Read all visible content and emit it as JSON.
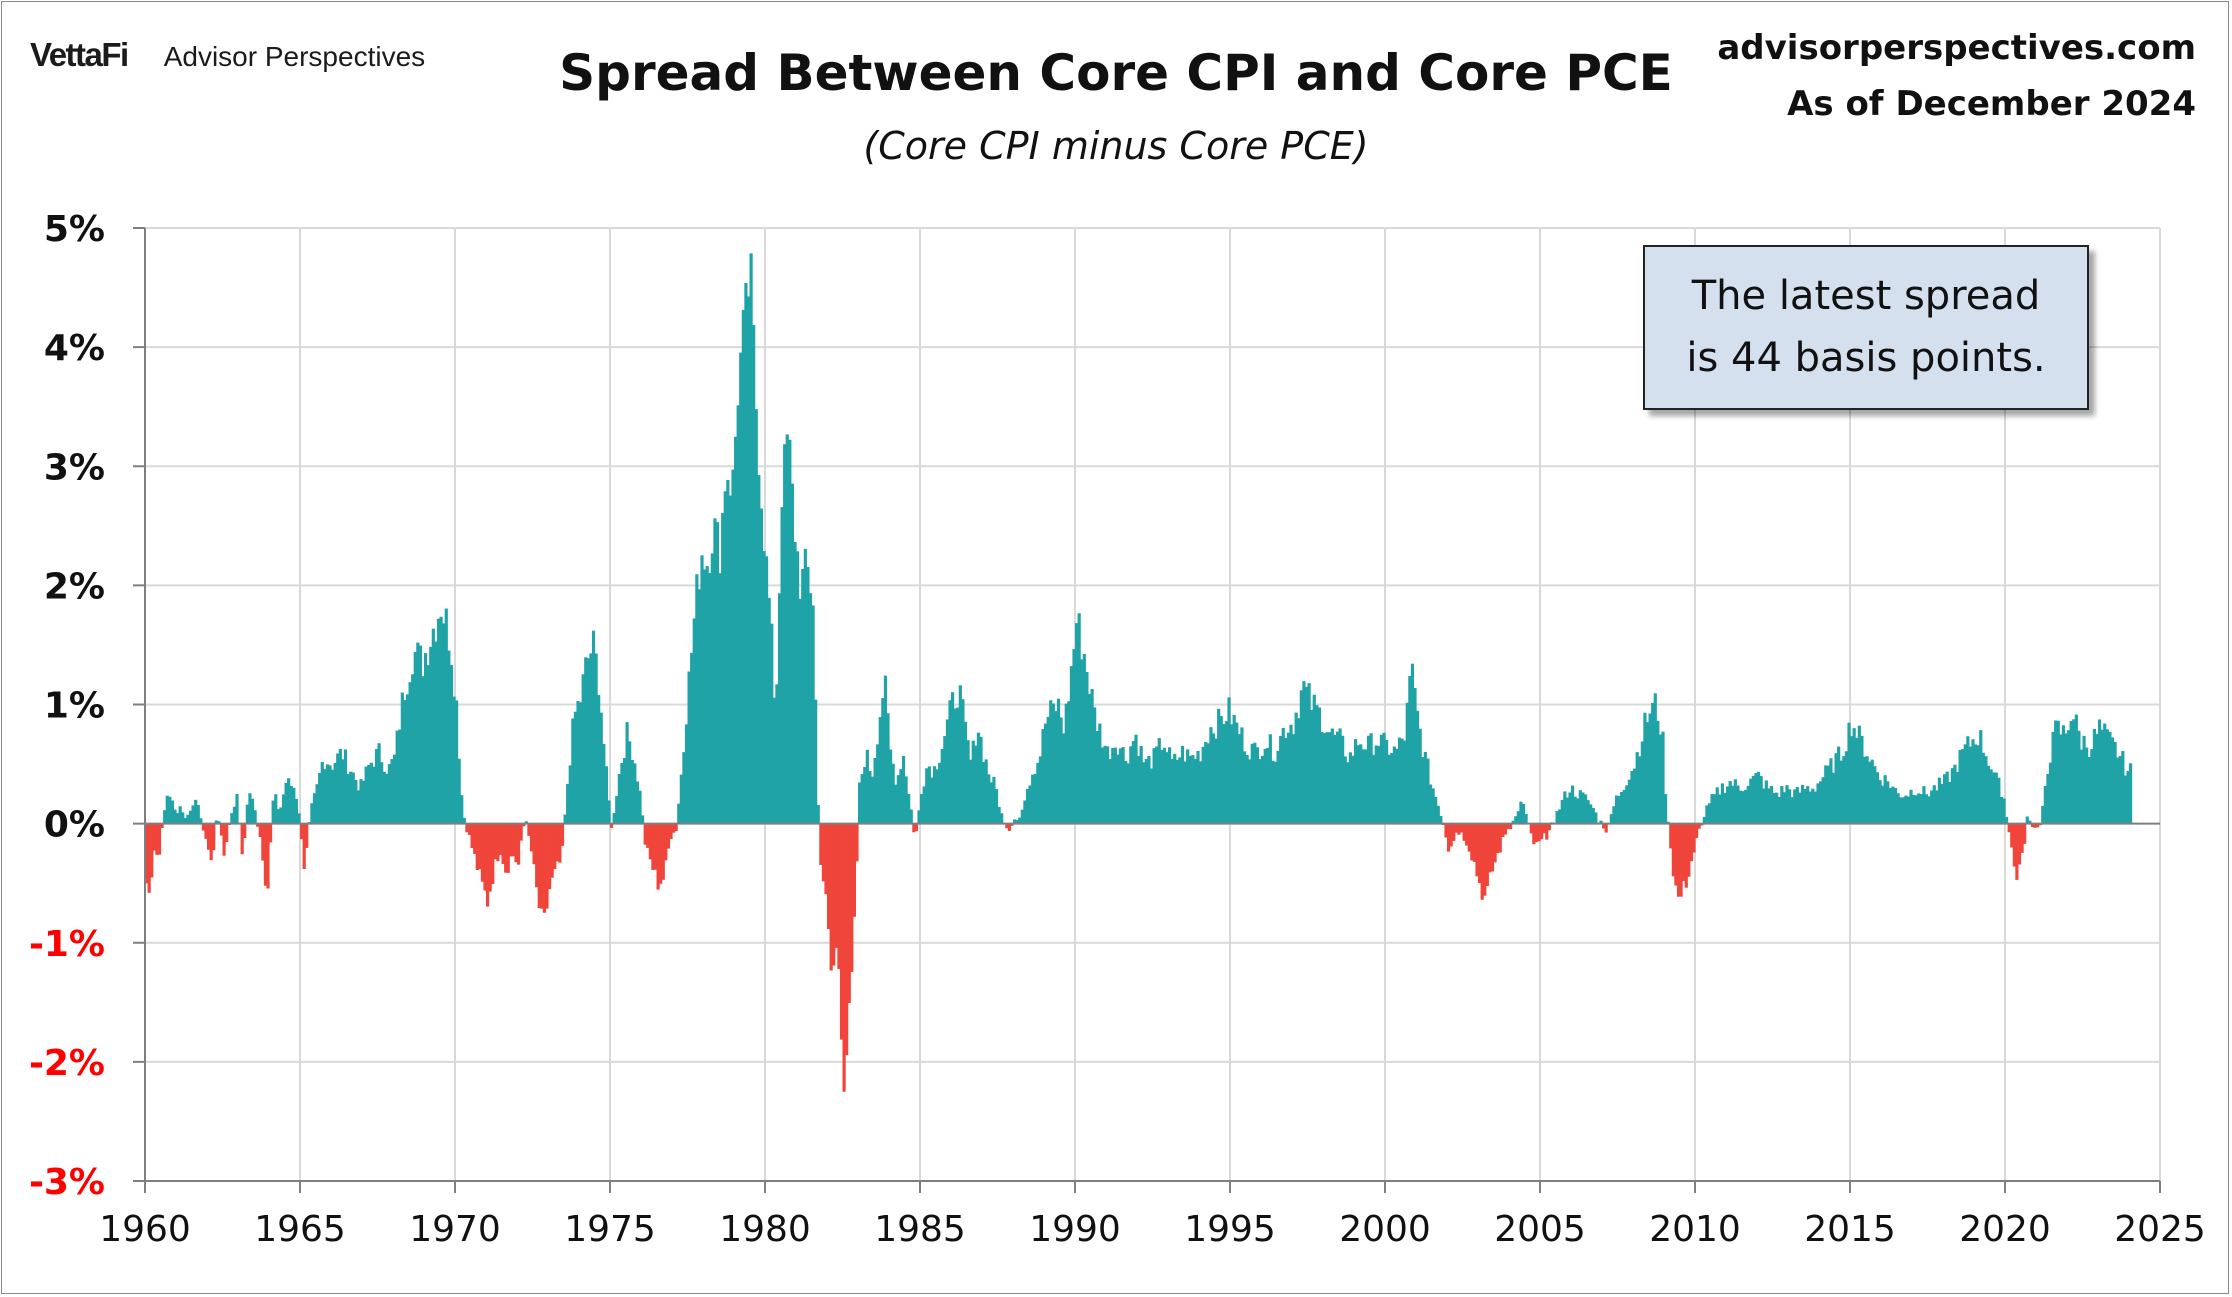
{
  "header": {
    "brand_logo": "VettaFi",
    "brand_name": "Advisor Perspectives",
    "title": "Spread Between Core CPI and Core PCE",
    "subtitle": "(Core CPI minus Core PCE)",
    "site": "advisorperspectives.com",
    "as_of": "As of December 2024"
  },
  "annotation": {
    "line1": "The latest spread",
    "line2": "is 44 basis points."
  },
  "colors": {
    "positive": "#1fa3a6",
    "negative": "#f0453b",
    "grid": "#d9d9d9",
    "axis": "#7f7f7f",
    "negative_tick_label": "#ff0000"
  },
  "chart_data": {
    "type": "bar",
    "title": "Spread Between Core CPI and Core PCE",
    "subtitle": "(Core CPI minus Core PCE)",
    "xlabel": "",
    "ylabel": "",
    "x_unit": "year (monthly observations)",
    "y_unit": "percentage points",
    "xlim": [
      1960,
      2025
    ],
    "ylim": [
      -3,
      5
    ],
    "x_ticks": [
      "1960",
      "1965",
      "1970",
      "1975",
      "1980",
      "1985",
      "1990",
      "1995",
      "2000",
      "2005",
      "2010",
      "2015",
      "2020",
      "2025"
    ],
    "y_ticks": [
      "5%",
      "4%",
      "3%",
      "2%",
      "1%",
      "0%",
      "-1%",
      "-2%",
      "-3%"
    ],
    "grid": true,
    "legend": "none",
    "latest_value": 0.44,
    "anchors": [
      [
        1960.0,
        -0.5
      ],
      [
        1960.08,
        -0.6
      ],
      [
        1960.25,
        -0.2
      ],
      [
        1960.4,
        -0.3
      ],
      [
        1960.55,
        0.05
      ],
      [
        1960.7,
        0.3
      ],
      [
        1960.9,
        0.1
      ],
      [
        1961.1,
        0.15
      ],
      [
        1961.3,
        0.05
      ],
      [
        1961.5,
        0.2
      ],
      [
        1961.7,
        0.1
      ],
      [
        1961.9,
        -0.1
      ],
      [
        1962.1,
        -0.35
      ],
      [
        1962.3,
        0.1
      ],
      [
        1962.5,
        -0.25
      ],
      [
        1962.7,
        0.05
      ],
      [
        1962.9,
        0.25
      ],
      [
        1963.1,
        -0.3
      ],
      [
        1963.3,
        0.3
      ],
      [
        1963.5,
        0.1
      ],
      [
        1963.7,
        -0.15
      ],
      [
        1963.9,
        -0.6
      ],
      [
        1964.1,
        0.25
      ],
      [
        1964.3,
        0.1
      ],
      [
        1964.5,
        0.35
      ],
      [
        1964.8,
        0.3
      ],
      [
        1965.0,
        -0.1
      ],
      [
        1965.1,
        -0.4
      ],
      [
        1965.3,
        0.1
      ],
      [
        1965.5,
        0.3
      ],
      [
        1965.7,
        0.55
      ],
      [
        1966.0,
        0.5
      ],
      [
        1966.3,
        0.6
      ],
      [
        1966.6,
        0.45
      ],
      [
        1966.9,
        0.3
      ],
      [
        1967.2,
        0.5
      ],
      [
        1967.5,
        0.6
      ],
      [
        1967.8,
        0.45
      ],
      [
        1968.0,
        0.55
      ],
      [
        1968.3,
        1.1
      ],
      [
        1968.6,
        1.45
      ],
      [
        1968.9,
        1.35
      ],
      [
        1969.2,
        1.6
      ],
      [
        1969.5,
        1.85
      ],
      [
        1969.8,
        1.55
      ],
      [
        1970.0,
        1.0
      ],
      [
        1970.2,
        0.1
      ],
      [
        1970.4,
        -0.1
      ],
      [
        1970.6,
        -0.3
      ],
      [
        1970.8,
        -0.5
      ],
      [
        1971.0,
        -0.65
      ],
      [
        1971.2,
        -0.4
      ],
      [
        1971.4,
        -0.2
      ],
      [
        1971.6,
        -0.4
      ],
      [
        1971.8,
        -0.25
      ],
      [
        1972.0,
        -0.35
      ],
      [
        1972.2,
        0.05
      ],
      [
        1972.4,
        -0.2
      ],
      [
        1972.6,
        -0.6
      ],
      [
        1972.8,
        -0.9
      ],
      [
        1973.0,
        -0.55
      ],
      [
        1973.2,
        -0.4
      ],
      [
        1973.4,
        -0.3
      ],
      [
        1973.6,
        0.4
      ],
      [
        1973.8,
        0.9
      ],
      [
        1974.0,
        1.05
      ],
      [
        1974.2,
        1.35
      ],
      [
        1974.4,
        1.5
      ],
      [
        1974.6,
        1.2
      ],
      [
        1974.8,
        0.5
      ],
      [
        1975.0,
        -0.05
      ],
      [
        1975.1,
        0.15
      ],
      [
        1975.3,
        0.5
      ],
      [
        1975.5,
        0.75
      ],
      [
        1975.7,
        0.6
      ],
      [
        1975.9,
        0.3
      ],
      [
        1976.1,
        -0.2
      ],
      [
        1976.3,
        -0.35
      ],
      [
        1976.5,
        -0.5
      ],
      [
        1976.7,
        -0.45
      ],
      [
        1976.9,
        -0.1
      ],
      [
        1977.1,
        -0.05
      ],
      [
        1977.3,
        0.6
      ],
      [
        1977.5,
        1.2
      ],
      [
        1977.7,
        1.8
      ],
      [
        1977.9,
        2.3
      ],
      [
        1978.1,
        2.2
      ],
      [
        1978.3,
        2.5
      ],
      [
        1978.5,
        2.3
      ],
      [
        1978.7,
        3.0
      ],
      [
        1978.9,
        2.8
      ],
      [
        1979.1,
        3.7
      ],
      [
        1979.3,
        4.3
      ],
      [
        1979.5,
        4.6
      ],
      [
        1979.7,
        3.3
      ],
      [
        1979.9,
        2.5
      ],
      [
        1980.1,
        1.8
      ],
      [
        1980.3,
        0.9
      ],
      [
        1980.5,
        2.8
      ],
      [
        1980.7,
        3.3
      ],
      [
        1980.9,
        2.5
      ],
      [
        1981.1,
        2.0
      ],
      [
        1981.3,
        2.15
      ],
      [
        1981.5,
        1.9
      ],
      [
        1981.7,
        -0.2
      ],
      [
        1981.9,
        -0.6
      ],
      [
        1982.1,
        -1.3
      ],
      [
        1982.3,
        -1.0
      ],
      [
        1982.5,
        -2.1
      ],
      [
        1982.7,
        -1.6
      ],
      [
        1982.85,
        -0.8
      ],
      [
        1983.0,
        0.3
      ],
      [
        1983.2,
        0.6
      ],
      [
        1983.4,
        0.4
      ],
      [
        1983.6,
        0.8
      ],
      [
        1983.8,
        1.2
      ],
      [
        1984.0,
        0.6
      ],
      [
        1984.2,
        0.35
      ],
      [
        1984.4,
        0.6
      ],
      [
        1984.6,
        0.25
      ],
      [
        1984.8,
        -0.15
      ],
      [
        1985.0,
        0.3
      ],
      [
        1985.2,
        0.5
      ],
      [
        1985.4,
        0.45
      ],
      [
        1985.6,
        0.6
      ],
      [
        1985.8,
        0.8
      ],
      [
        1986.0,
        1.0
      ],
      [
        1986.2,
        1.15
      ],
      [
        1986.4,
        0.8
      ],
      [
        1986.6,
        0.5
      ],
      [
        1986.8,
        0.85
      ],
      [
        1987.0,
        0.6
      ],
      [
        1987.2,
        0.4
      ],
      [
        1987.4,
        0.3
      ],
      [
        1987.6,
        0.05
      ],
      [
        1987.8,
        -0.05
      ],
      [
        1988.0,
        0.0
      ],
      [
        1988.2,
        0.1
      ],
      [
        1988.4,
        0.3
      ],
      [
        1988.6,
        0.45
      ],
      [
        1988.8,
        0.55
      ],
      [
        1989.0,
        0.85
      ],
      [
        1989.2,
        0.95
      ],
      [
        1989.4,
        1.0
      ],
      [
        1989.6,
        0.8
      ],
      [
        1989.8,
        1.2
      ],
      [
        1990.0,
        1.7
      ],
      [
        1990.2,
        1.5
      ],
      [
        1990.4,
        1.2
      ],
      [
        1990.6,
        0.9
      ],
      [
        1990.8,
        0.75
      ],
      [
        1991.0,
        0.6
      ],
      [
        1991.3,
        0.7
      ],
      [
        1991.6,
        0.55
      ],
      [
        1991.9,
        0.75
      ],
      [
        1992.2,
        0.5
      ],
      [
        1992.5,
        0.55
      ],
      [
        1992.8,
        0.7
      ],
      [
        1993.1,
        0.5
      ],
      [
        1993.4,
        0.6
      ],
      [
        1993.7,
        0.55
      ],
      [
        1994.0,
        0.6
      ],
      [
        1994.3,
        0.8
      ],
      [
        1994.6,
        0.85
      ],
      [
        1994.9,
        0.95
      ],
      [
        1995.2,
        0.8
      ],
      [
        1995.5,
        0.65
      ],
      [
        1995.8,
        0.6
      ],
      [
        1996.1,
        0.7
      ],
      [
        1996.4,
        0.6
      ],
      [
        1996.7,
        0.8
      ],
      [
        1997.0,
        0.85
      ],
      [
        1997.3,
        1.15
      ],
      [
        1997.6,
        1.0
      ],
      [
        1997.9,
        0.9
      ],
      [
        1998.2,
        0.75
      ],
      [
        1998.5,
        0.7
      ],
      [
        1998.8,
        0.55
      ],
      [
        1999.1,
        0.7
      ],
      [
        1999.4,
        0.65
      ],
      [
        1999.7,
        0.7
      ],
      [
        2000.0,
        0.65
      ],
      [
        2000.3,
        0.6
      ],
      [
        2000.6,
        0.75
      ],
      [
        2000.8,
        1.3
      ],
      [
        2001.0,
        0.9
      ],
      [
        2001.2,
        0.6
      ],
      [
        2001.5,
        0.3
      ],
      [
        2001.8,
        0.05
      ],
      [
        2002.0,
        -0.2
      ],
      [
        2002.3,
        -0.05
      ],
      [
        2002.6,
        -0.15
      ],
      [
        2002.8,
        -0.3
      ],
      [
        2003.0,
        -0.5
      ],
      [
        2003.2,
        -0.65
      ],
      [
        2003.4,
        -0.4
      ],
      [
        2003.6,
        -0.25
      ],
      [
        2003.9,
        -0.05
      ],
      [
        2004.2,
        0.05
      ],
      [
        2004.4,
        0.2
      ],
      [
        2004.6,
        -0.05
      ],
      [
        2004.8,
        -0.2
      ],
      [
        2005.0,
        -0.15
      ],
      [
        2005.3,
        -0.05
      ],
      [
        2005.6,
        0.15
      ],
      [
        2005.9,
        0.3
      ],
      [
        2006.2,
        0.25
      ],
      [
        2006.5,
        0.2
      ],
      [
        2006.8,
        0.05
      ],
      [
        2007.1,
        -0.05
      ],
      [
        2007.4,
        0.2
      ],
      [
        2007.7,
        0.35
      ],
      [
        2008.0,
        0.5
      ],
      [
        2008.3,
        0.8
      ],
      [
        2008.5,
        0.95
      ],
      [
        2008.7,
        1.0
      ],
      [
        2008.9,
        0.75
      ],
      [
        2009.0,
        0.3
      ],
      [
        2009.2,
        -0.3
      ],
      [
        2009.4,
        -0.65
      ],
      [
        2009.6,
        -0.55
      ],
      [
        2009.8,
        -0.35
      ],
      [
        2010.0,
        -0.15
      ],
      [
        2010.2,
        0.05
      ],
      [
        2010.5,
        0.2
      ],
      [
        2010.8,
        0.3
      ],
      [
        2011.1,
        0.35
      ],
      [
        2011.4,
        0.3
      ],
      [
        2011.7,
        0.35
      ],
      [
        2012.0,
        0.4
      ],
      [
        2012.3,
        0.3
      ],
      [
        2012.6,
        0.25
      ],
      [
        2012.9,
        0.3
      ],
      [
        2013.2,
        0.25
      ],
      [
        2013.5,
        0.3
      ],
      [
        2013.8,
        0.3
      ],
      [
        2014.1,
        0.4
      ],
      [
        2014.4,
        0.5
      ],
      [
        2014.7,
        0.6
      ],
      [
        2015.0,
        0.85
      ],
      [
        2015.3,
        0.7
      ],
      [
        2015.6,
        0.55
      ],
      [
        2015.9,
        0.4
      ],
      [
        2016.2,
        0.35
      ],
      [
        2016.5,
        0.25
      ],
      [
        2016.8,
        0.25
      ],
      [
        2017.1,
        0.3
      ],
      [
        2017.4,
        0.25
      ],
      [
        2017.7,
        0.3
      ],
      [
        2018.0,
        0.35
      ],
      [
        2018.3,
        0.45
      ],
      [
        2018.6,
        0.6
      ],
      [
        2018.9,
        0.7
      ],
      [
        2019.1,
        0.75
      ],
      [
        2019.4,
        0.55
      ],
      [
        2019.7,
        0.35
      ],
      [
        2019.9,
        0.25
      ],
      [
        2020.1,
        -0.1
      ],
      [
        2020.3,
        -0.45
      ],
      [
        2020.5,
        -0.3
      ],
      [
        2020.7,
        0.1
      ],
      [
        2020.9,
        -0.05
      ],
      [
        2021.1,
        -0.05
      ],
      [
        2021.3,
        0.45
      ],
      [
        2021.6,
        0.8
      ],
      [
        2021.9,
        0.75
      ],
      [
        2022.1,
        0.95
      ],
      [
        2022.4,
        0.7
      ],
      [
        2022.7,
        0.65
      ],
      [
        2023.0,
        0.8
      ],
      [
        2023.3,
        0.7
      ],
      [
        2023.6,
        0.6
      ],
      [
        2023.9,
        0.45
      ],
      [
        2024.0,
        0.44
      ]
    ]
  }
}
